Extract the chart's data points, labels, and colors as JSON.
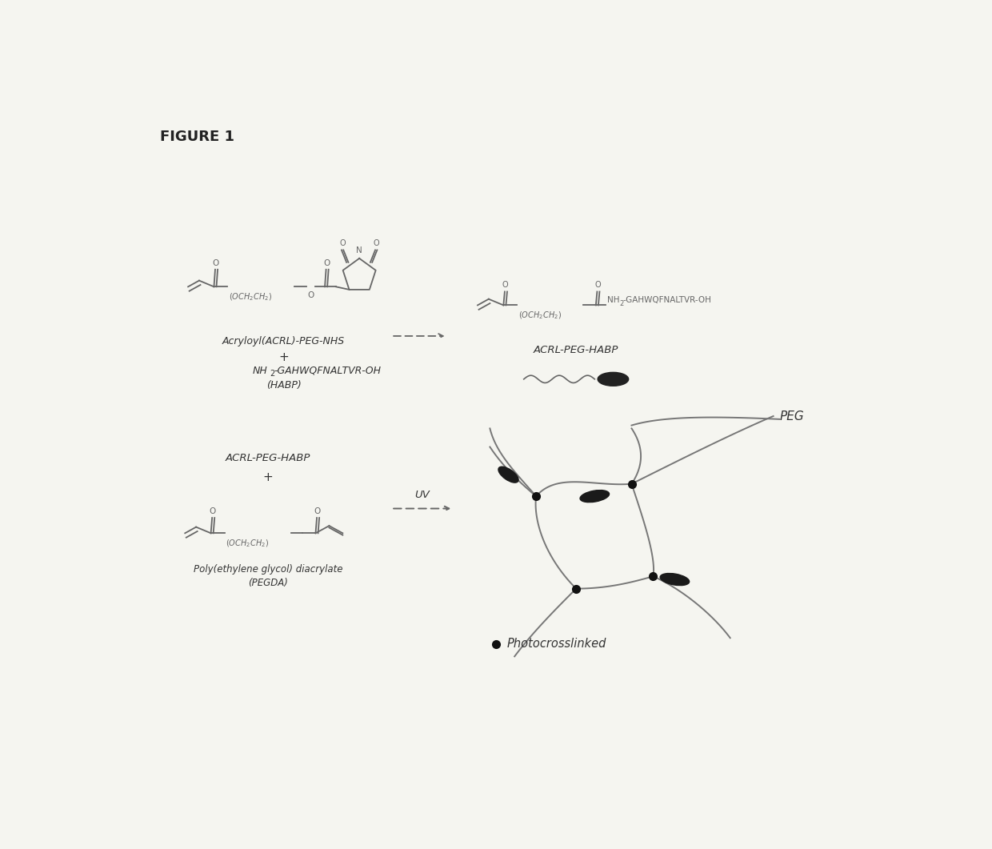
{
  "figure_title": "FIGURE 1",
  "bg": "#f5f5f0",
  "lc": "#666666",
  "lw": 1.0,
  "tc": "#333333",
  "label_top_left_1": "Acryloyl(ACRL)-PEG-NHS",
  "label_top_left_2": "+",
  "label_top_left_3_a": "NH",
  "label_top_left_3_b": "2",
  "label_top_left_3_c": "-GAHWQFNALTVR-OH",
  "label_top_left_4": "(HABP)",
  "label_top_right": "ACRL-PEG-HABP",
  "label_top_right_nh2": "NH",
  "label_top_right_2": "2",
  "label_top_right_peptide": "-GAHWQFNALTVR-OH",
  "label_bot_left_1": "ACRL-PEG-HABP",
  "label_bot_left_2": "+",
  "label_bot_left_3": "Poly(ethylene glycol) diacrylate",
  "label_bot_left_4": "(PEGDA)",
  "label_uv": "UV",
  "label_peg": "PEG",
  "label_photo": "Photocrosslinked",
  "peg_text": "(OCH₂CH₂)",
  "o_label": "O",
  "n_label": "N"
}
